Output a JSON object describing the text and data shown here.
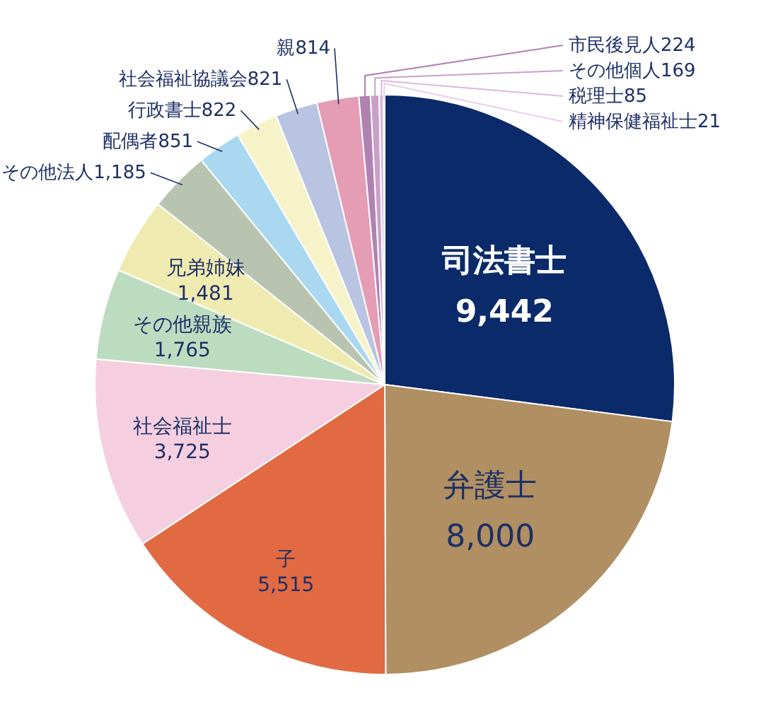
{
  "chart_data": {
    "type": "pie",
    "categories": [
      "司法書士",
      "弁護士",
      "子",
      "社会福祉士",
      "その他親族",
      "兄弟姉妹",
      "その他法人",
      "配偶者",
      "行政書士",
      "社会福祉協議会",
      "親",
      "市民後見人",
      "その他個人",
      "税理士",
      "精神保健福祉士"
    ],
    "values": [
      9442,
      8000,
      5515,
      3725,
      1765,
      1481,
      1185,
      851,
      822,
      821,
      814,
      224,
      169,
      85,
      21
    ],
    "value_labels": [
      "9,442",
      "8,000",
      "5,515",
      "3,725",
      "1,765",
      "1,481",
      "1,185",
      "851",
      "822",
      "821",
      "814",
      "224",
      "169",
      "85",
      "21"
    ],
    "colors": [
      "#0b2a6a",
      "#b08f62",
      "#e26a42",
      "#f5cfe0",
      "#bcdcc0",
      "#efebb0",
      "#b8c4b0",
      "#a9d8f0",
      "#f6f3c8",
      "#b9c3e2",
      "#e59cb5",
      "#b082b2",
      "#c9a0c9",
      "#d8b8d8",
      "#e8d0e8"
    ]
  }
}
